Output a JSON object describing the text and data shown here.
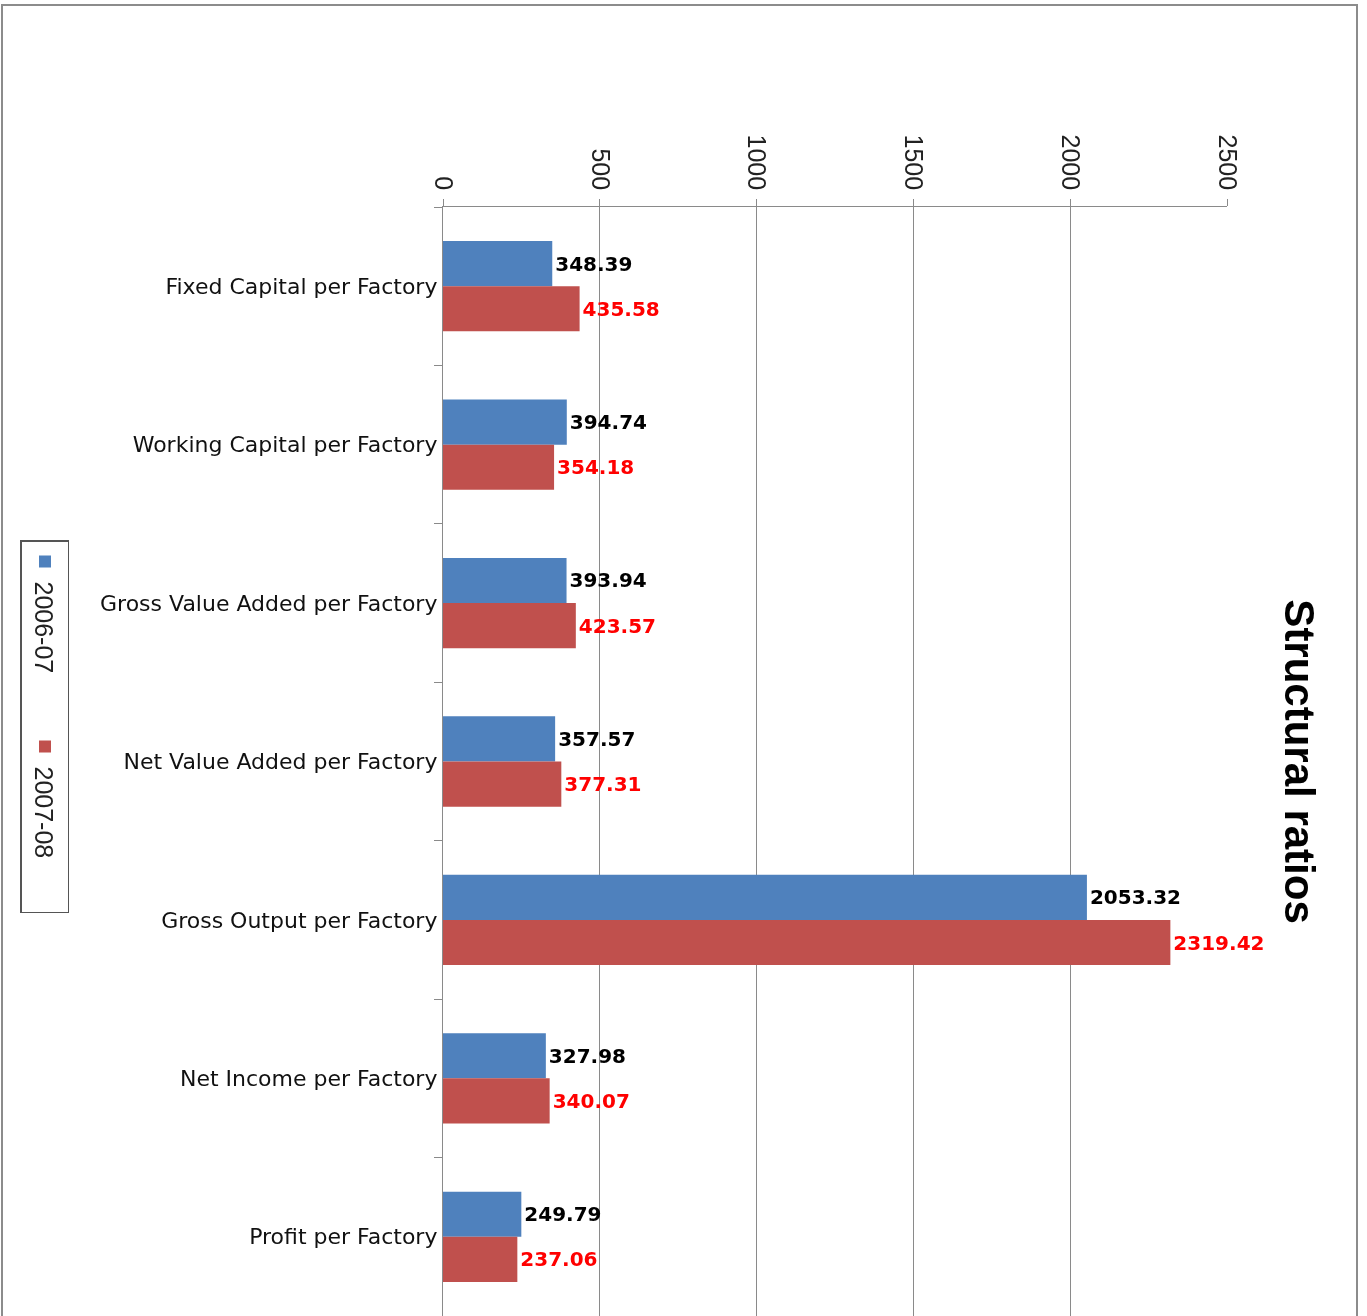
{
  "chart_data": {
    "type": "bar",
    "orientation": "horizontal",
    "title": "Structural ratios",
    "categories": [
      "Fixed Capital per Factory",
      "Working Capital per Factory",
      "Gross Value Added per Factory",
      "Net Value Added per Factory",
      "Gross Output per Factory",
      "Net Income per Factory",
      "Profit per Factory"
    ],
    "series": [
      {
        "name": "2006-07",
        "color": "#4f81bd",
        "values": [
          348.39,
          394.74,
          393.94,
          357.57,
          2053.32,
          327.98,
          249.79
        ]
      },
      {
        "name": "2007-08",
        "color": "#c0504d",
        "values": [
          435.58,
          354.18,
          423.57,
          377.31,
          2319.42,
          340.07,
          237.06
        ]
      }
    ],
    "xlim": [
      0,
      2500
    ],
    "xticks": [
      0,
      500,
      1000,
      1500,
      2000,
      2500
    ],
    "grid": "x",
    "legend": "left",
    "data_labels": true
  }
}
